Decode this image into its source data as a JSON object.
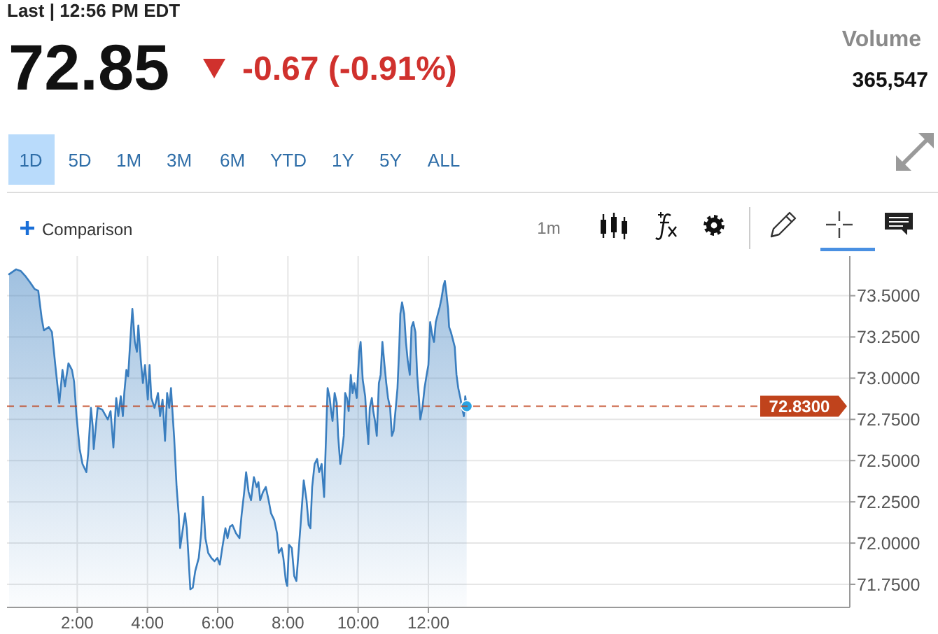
{
  "chart_data": {
    "type": "area",
    "title": "72.85",
    "subtitle": "-0.67 (-0.91%)",
    "annotations": [
      "Last | 12:56 PM EDT",
      "Volume",
      "365,547",
      "1D",
      "5D",
      "1M",
      "3M",
      "6M",
      "YTD",
      "1Y",
      "5Y",
      "ALL",
      "Comparison",
      "1m"
    ],
    "x": [
      0.06,
      0.26,
      0.39,
      0.52,
      0.66,
      0.79,
      0.89,
      0.99,
      1.05,
      1.19,
      1.28,
      1.38,
      1.49,
      1.58,
      1.65,
      1.75,
      1.85,
      1.91,
      1.98,
      2.07,
      2.15,
      2.26,
      2.31,
      2.39,
      2.44,
      2.47,
      2.58,
      2.71,
      2.87,
      2.95,
      3.03,
      3.11,
      3.17,
      3.24,
      3.3,
      3.34,
      3.4,
      3.45,
      3.5,
      3.57,
      3.64,
      3.7,
      3.74,
      3.81,
      3.87,
      3.93,
      4.01,
      4.06,
      4.11,
      4.2,
      4.3,
      4.36,
      4.43,
      4.5,
      4.56,
      4.62,
      4.67,
      4.72,
      4.76,
      4.83,
      4.89,
      4.93,
      4.99,
      5.07,
      5.12,
      5.17,
      5.22,
      5.29,
      5.36,
      5.46,
      5.53,
      5.58,
      5.65,
      5.73,
      5.82,
      5.91,
      5.99,
      6.06,
      6.13,
      6.22,
      6.28,
      6.35,
      6.42,
      6.52,
      6.62,
      6.68,
      6.75,
      6.81,
      6.88,
      6.95,
      7.03,
      7.11,
      7.16,
      7.21,
      7.29,
      7.37,
      7.45,
      7.52,
      7.61,
      7.69,
      7.74,
      7.82,
      7.87,
      7.94,
      7.98,
      8.03,
      8.11,
      8.18,
      8.24,
      8.36,
      8.45,
      8.53,
      8.59,
      8.64,
      8.69,
      8.76,
      8.83,
      8.89,
      8.96,
      9.03,
      9.09,
      9.13,
      9.19,
      9.23,
      9.27,
      9.33,
      9.39,
      9.43,
      9.49,
      9.53,
      9.59,
      9.63,
      9.68,
      9.73,
      9.79,
      9.84,
      9.89,
      9.96,
      10.03,
      10.07,
      10.09,
      10.13,
      10.2,
      10.24,
      10.29,
      10.33,
      10.39,
      10.43,
      10.48,
      10.53,
      10.59,
      10.64,
      10.69,
      10.75,
      10.8,
      10.85,
      10.91,
      10.96,
      11.01,
      11.07,
      11.12,
      11.17,
      11.2,
      11.25,
      11.31,
      11.36,
      11.41,
      11.47,
      11.52,
      11.57,
      11.63,
      11.68,
      11.73,
      11.77,
      11.83,
      11.89,
      11.95,
      12.0,
      12.05,
      12.11,
      12.16,
      12.21,
      12.27,
      12.32,
      12.37,
      12.43,
      12.47,
      12.51,
      12.56,
      12.59,
      12.64,
      12.69,
      12.75,
      12.8,
      12.85,
      12.91,
      12.96,
      13.01,
      13.05,
      13.09
    ],
    "xlim": [
      0,
      24
    ],
    "xticks": [
      {
        "value": 2,
        "label": "2:00"
      },
      {
        "value": 4,
        "label": "4:00"
      },
      {
        "value": 6,
        "label": "6:00"
      },
      {
        "value": 8,
        "label": "8:00"
      },
      {
        "value": 10,
        "label": "10:00"
      },
      {
        "value": 12,
        "label": "12:00"
      }
    ],
    "ylim": [
      71.61,
      73.74
    ],
    "yticks": [
      {
        "value": 71.75,
        "label": "71.7500"
      },
      {
        "value": 72,
        "label": "72.0000"
      },
      {
        "value": 72.25,
        "label": "72.2500"
      },
      {
        "value": 72.5,
        "label": "72.5000"
      },
      {
        "value": 72.75,
        "label": "72.7500"
      },
      {
        "value": 73,
        "label": "73.0000"
      },
      {
        "value": 73.25,
        "label": "73.2500"
      },
      {
        "value": 73.5,
        "label": "73.5000"
      }
    ],
    "series": [
      {
        "color": "#3a7ebf",
        "values": [
          73.63,
          73.66,
          73.65,
          73.62,
          73.58,
          73.54,
          73.53,
          73.36,
          73.29,
          73.31,
          73.28,
          73.07,
          72.85,
          73.05,
          72.95,
          73.09,
          73.05,
          72.98,
          72.77,
          72.57,
          72.48,
          72.43,
          72.54,
          72.82,
          72.71,
          72.57,
          72.82,
          72.81,
          72.75,
          72.8,
          72.58,
          72.88,
          72.77,
          72.89,
          72.77,
          72.91,
          73.05,
          73.01,
          73.19,
          73.42,
          73.22,
          73.16,
          73.32,
          73.11,
          72.97,
          73.08,
          72.87,
          73.08,
          72.88,
          72.82,
          72.91,
          72.77,
          72.87,
          72.62,
          72.91,
          72.82,
          72.94,
          72.77,
          72.64,
          72.34,
          72.17,
          71.97,
          72.06,
          72.18,
          72.09,
          71.91,
          71.72,
          71.73,
          71.83,
          71.91,
          72.06,
          72.28,
          72.03,
          71.94,
          71.91,
          71.89,
          71.91,
          71.87,
          71.97,
          72.09,
          72.03,
          72.1,
          72.11,
          72.06,
          72.03,
          72.17,
          72.3,
          72.43,
          72.31,
          72.26,
          72.4,
          72.34,
          72.37,
          72.26,
          72.31,
          72.34,
          72.26,
          72.18,
          72.14,
          72.06,
          71.94,
          71.97,
          71.91,
          71.77,
          71.74,
          71.99,
          71.97,
          71.8,
          71.77,
          72.11,
          72.38,
          72.26,
          72.11,
          72.09,
          72.34,
          72.48,
          72.51,
          72.43,
          72.48,
          72.28,
          72.68,
          72.94,
          72.88,
          72.8,
          72.74,
          72.91,
          72.85,
          72.65,
          72.48,
          72.54,
          72.65,
          72.91,
          72.88,
          72.8,
          73.02,
          72.91,
          72.97,
          72.88,
          73.16,
          73.22,
          73.14,
          72.99,
          72.89,
          72.74,
          72.6,
          72.82,
          72.88,
          72.8,
          72.74,
          72.65,
          72.97,
          73.02,
          73.22,
          73.08,
          72.97,
          72.88,
          72.82,
          72.65,
          72.68,
          72.82,
          72.94,
          73.19,
          73.39,
          73.46,
          73.39,
          73.22,
          73.11,
          73.02,
          73.31,
          73.34,
          73.28,
          73.02,
          72.88,
          72.75,
          72.82,
          72.94,
          73.02,
          73.08,
          73.34,
          73.26,
          73.22,
          73.34,
          73.39,
          73.43,
          73.48,
          73.56,
          73.59,
          73.52,
          73.42,
          73.31,
          73.28,
          73.24,
          73.19,
          73.02,
          72.94,
          72.88,
          72.82,
          72.77,
          72.89,
          72.83
        ]
      },
      {
        "type": "scatter",
        "color": "#29a3e3",
        "marker": "circle",
        "x": [
          13.09
        ],
        "values": [
          72.83
        ]
      }
    ],
    "ref_lines": [
      {
        "axis": "y",
        "value": 72.83,
        "label": "72.8300",
        "color": "#c0431c",
        "line_style": "dashed"
      }
    ],
    "grid": true
  }
}
